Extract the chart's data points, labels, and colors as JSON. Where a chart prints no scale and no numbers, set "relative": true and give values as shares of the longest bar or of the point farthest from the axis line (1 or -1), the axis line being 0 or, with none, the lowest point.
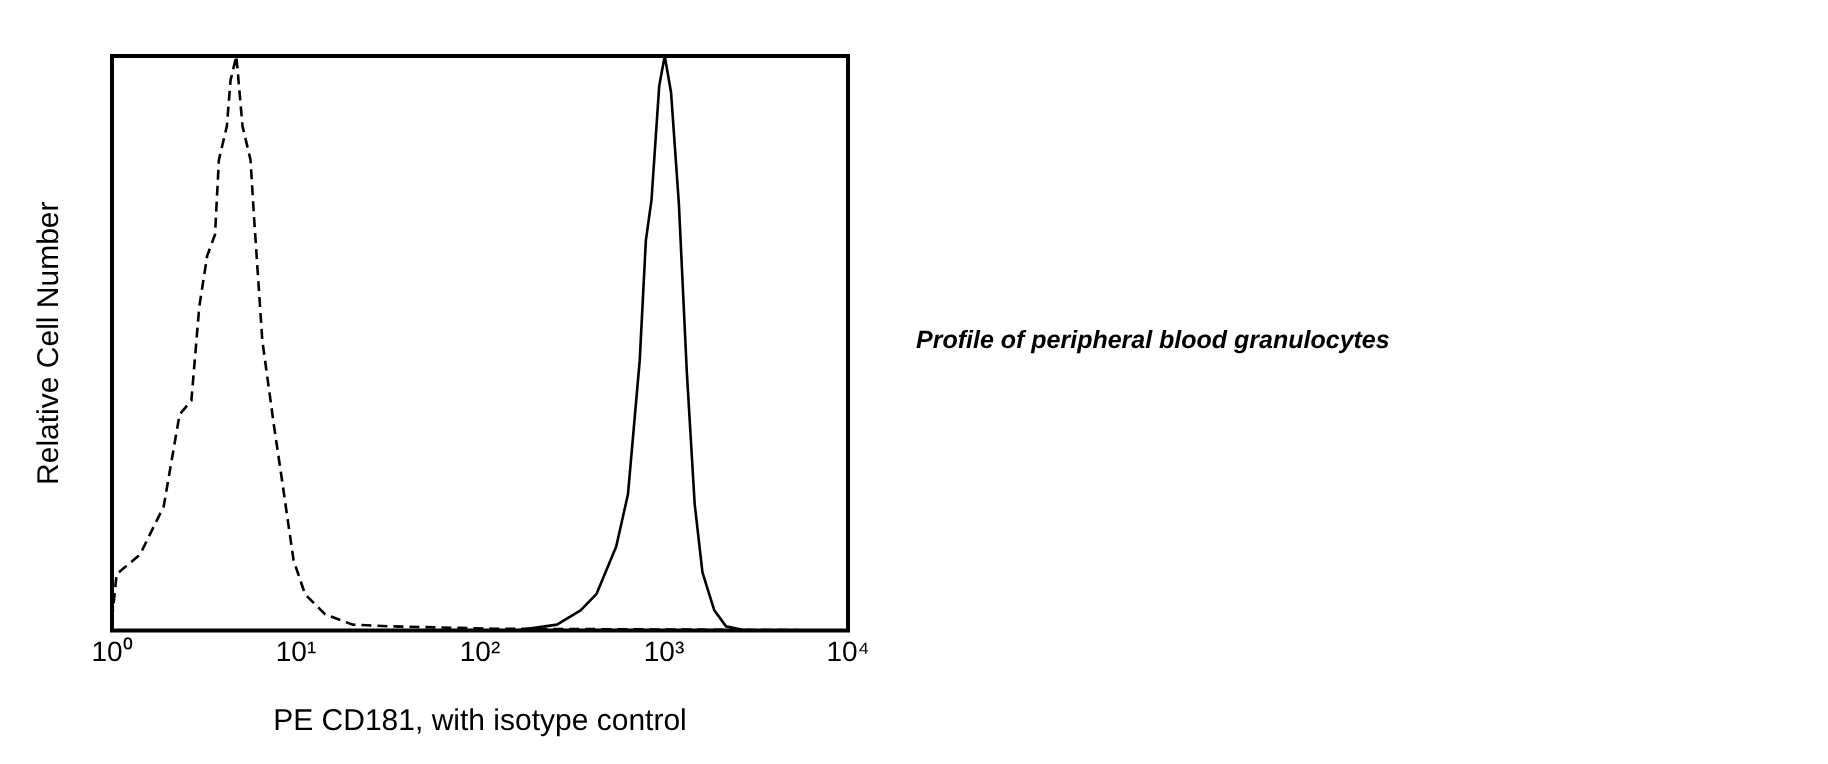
{
  "chart_data": {
    "type": "line",
    "relative": true,
    "log": "x",
    "xlabel": "PE CD181, with isotype control",
    "ylabel": "Relative Cell Number",
    "xlim": [
      1,
      10000
    ],
    "xticks": [
      {
        "value": 1,
        "label": "10⁰"
      },
      {
        "value": 10,
        "label": "10¹"
      },
      {
        "value": 100,
        "label": "10²"
      },
      {
        "value": 1000,
        "label": "10³"
      },
      {
        "value": 10000,
        "label": "10⁴"
      }
    ],
    "grid": false,
    "legend": false,
    "marker": "none",
    "tick_labels": "x",
    "annotations": [
      "Profile of peripheral blood granulocytes"
    ],
    "series": [
      {
        "color": "#000000",
        "line_style": "dashed",
        "x": [
          1,
          1.06,
          1.42,
          1.91,
          2.33,
          2.7,
          2.98,
          3.29,
          3.63,
          3.81,
          4.21,
          4.41,
          4.74,
          5.12,
          5.66,
          5.93,
          6.56,
          7.6,
          8.4,
          9.7,
          11.2,
          14.4,
          20.3,
          33,
          119,
          10000
        ],
        "values": [
          0.02,
          0.098,
          0.132,
          0.216,
          0.376,
          0.4,
          0.563,
          0.652,
          0.689,
          0.819,
          0.878,
          0.958,
          1,
          0.878,
          0.819,
          0.714,
          0.505,
          0.355,
          0.261,
          0.122,
          0.063,
          0.028,
          0.01,
          0.007,
          0.003,
          0
        ]
      },
      {
        "color": "#000000",
        "line_style": "solid",
        "x": [
          1,
          160,
          262,
          352,
          429,
          550,
          637,
          738,
          797,
          855,
          942,
          1009,
          1092,
          1205,
          1331,
          1468,
          1618,
          1876,
          2173,
          2786,
          10000
        ],
        "values": [
          0,
          0,
          0.01,
          0.035,
          0.063,
          0.146,
          0.237,
          0.47,
          0.679,
          0.749,
          0.948,
          1,
          0.937,
          0.742,
          0.449,
          0.22,
          0.101,
          0.035,
          0.007,
          0,
          0
        ]
      }
    ]
  }
}
